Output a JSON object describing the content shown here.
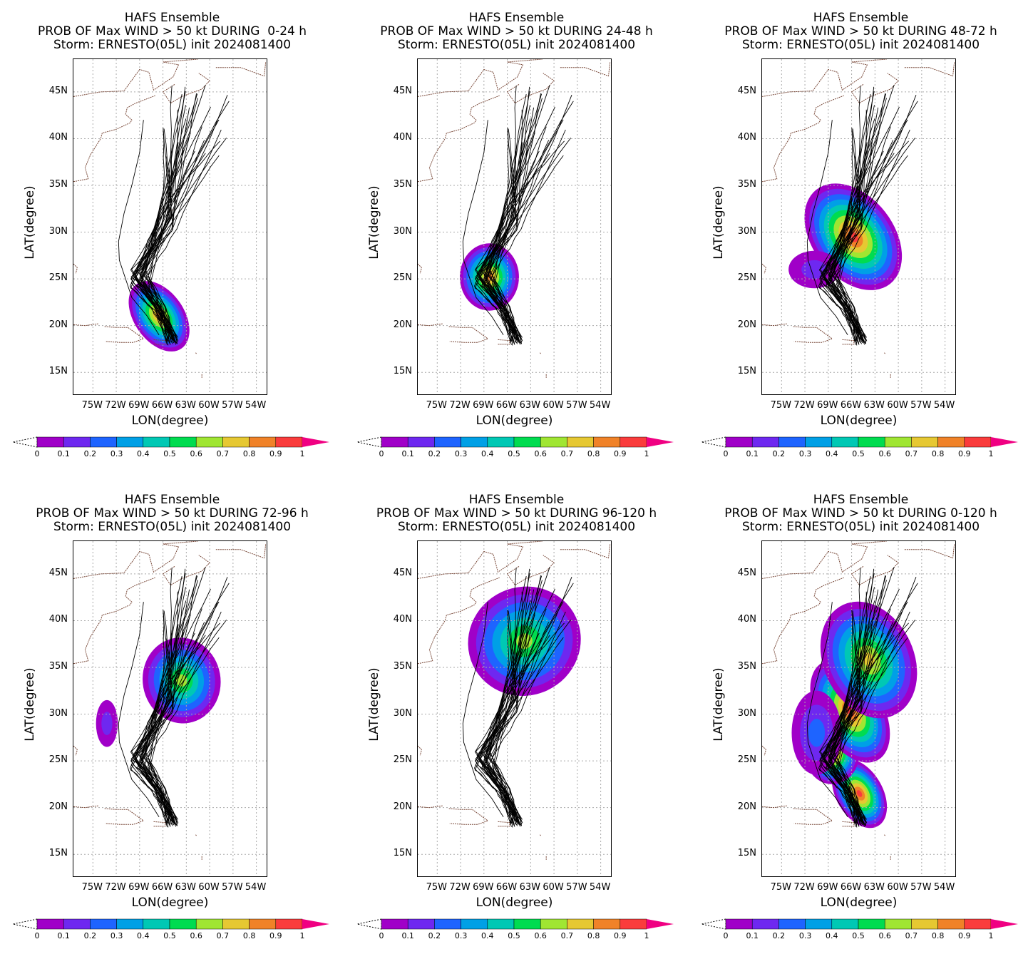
{
  "panels": [
    {
      "line1": "HAFS Ensemble",
      "line2": "PROB OF Max WIND > 50 kt DURING  0-24 h",
      "line3": "Storm: ERNESTO(05L) init 2024081400",
      "field": "p0"
    },
    {
      "line1": "HAFS Ensemble",
      "line2": "PROB OF Max WIND > 50 kt DURING 24-48 h",
      "line3": "Storm: ERNESTO(05L) init 2024081400",
      "field": "p1"
    },
    {
      "line1": "HAFS Ensemble",
      "line2": "PROB OF Max WIND > 50 kt DURING 48-72 h",
      "line3": "Storm: ERNESTO(05L) init 2024081400",
      "field": "p2"
    },
    {
      "line1": "HAFS Ensemble",
      "line2": "PROB OF Max WIND > 50 kt DURING 72-96 h",
      "line3": "Storm: ERNESTO(05L) init 2024081400",
      "field": "p3"
    },
    {
      "line1": "HAFS Ensemble",
      "line2": "PROB OF Max WIND > 50 kt DURING 96-120 h",
      "line3": "Storm: ERNESTO(05L) init 2024081400",
      "field": "p4"
    },
    {
      "line1": "HAFS Ensemble",
      "line2": "PROB OF Max WIND > 50 kt DURING 0-120 h",
      "line3": "Storm: ERNESTO(05L) init 2024081400",
      "field": "p5"
    }
  ],
  "axes": {
    "xlabel": "LON(degree)",
    "ylabel": "LAT(degree)",
    "xticks": [
      "75W",
      "72W",
      "69W",
      "66W",
      "63W",
      "60W",
      "57W",
      "54W"
    ],
    "xtick_values": [
      -75,
      -72,
      -69,
      -66,
      -63,
      -60,
      -57,
      -54
    ],
    "yticks": [
      "15N",
      "20N",
      "25N",
      "30N",
      "35N",
      "40N",
      "45N"
    ],
    "ytick_values": [
      15,
      20,
      25,
      30,
      35,
      40,
      45
    ],
    "lon_range": [
      -77.5,
      -52.5
    ],
    "lat_range": [
      12.5,
      48.5
    ]
  },
  "colorbar": {
    "labels": [
      "0",
      "0.1",
      "0.2",
      "0.3",
      "0.4",
      "0.5",
      "0.6",
      "0.7",
      "0.8",
      "0.9",
      "1"
    ],
    "colors": [
      "#a000c8",
      "#6e28f0",
      "#1e64ff",
      "#00a0e6",
      "#00c8b4",
      "#00dc50",
      "#a0e632",
      "#e6c832",
      "#f08228",
      "#fa3c3c",
      "#f00082"
    ]
  },
  "storm_track": {
    "start": {
      "lat": 18.3,
      "lon": -64.8
    },
    "recurve": {
      "lat": 25.0,
      "lon": -69.0
    }
  }
}
